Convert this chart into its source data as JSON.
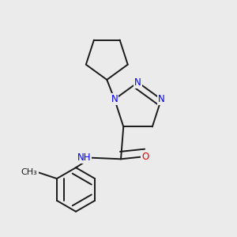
{
  "bg_color": "#ebebeb",
  "bond_color": "#1a1a1a",
  "N_color": "#0000ee",
  "O_color": "#ee0000",
  "lw": 1.4,
  "fs": 8.5,
  "dbo": 0.012,
  "fig_w": 3.0,
  "fig_h": 3.0,
  "dpi": 100,
  "xlim": [
    0.05,
    0.95
  ],
  "ylim": [
    0.05,
    0.95
  ]
}
